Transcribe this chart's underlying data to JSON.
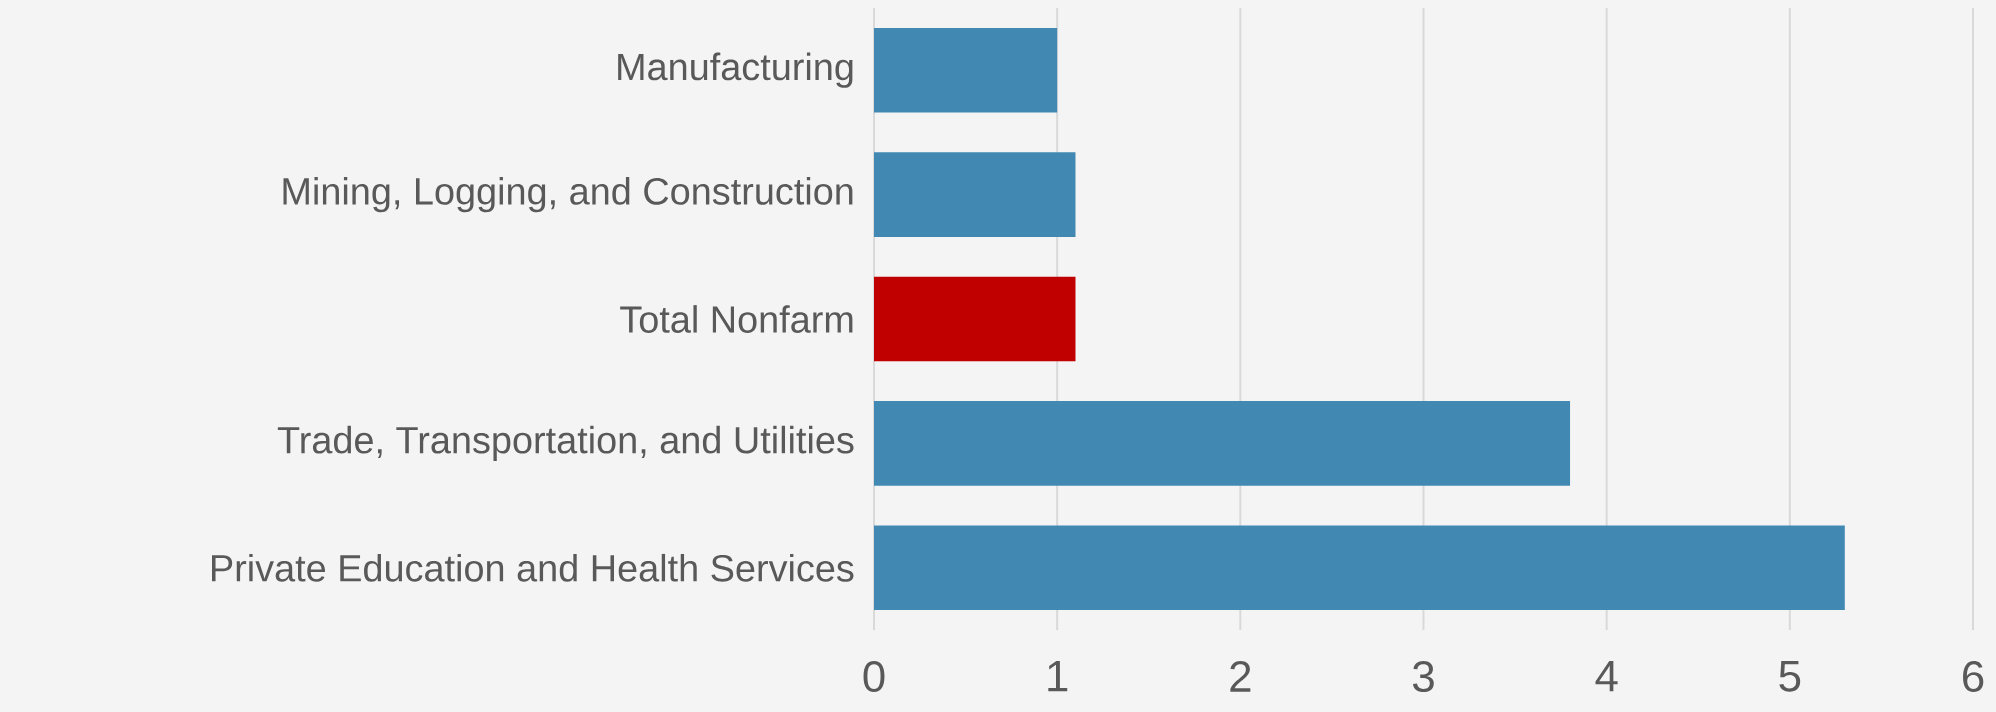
{
  "chart_data": {
    "type": "bar",
    "orientation": "horizontal",
    "categories": [
      "Manufacturing",
      "Mining, Logging, and Construction",
      "Total Nonfarm",
      "Trade, Transportation, and Utilities",
      "Private Education and Health Services"
    ],
    "values": [
      1.0,
      1.1,
      1.1,
      3.8,
      5.3
    ],
    "colors": [
      "#4189b3",
      "#4189b3",
      "#c00000",
      "#4189b3",
      "#4189b3"
    ],
    "xlim": [
      0,
      6
    ],
    "xticks": [
      0,
      1,
      2,
      3,
      4,
      5,
      6
    ],
    "grid": "x"
  }
}
